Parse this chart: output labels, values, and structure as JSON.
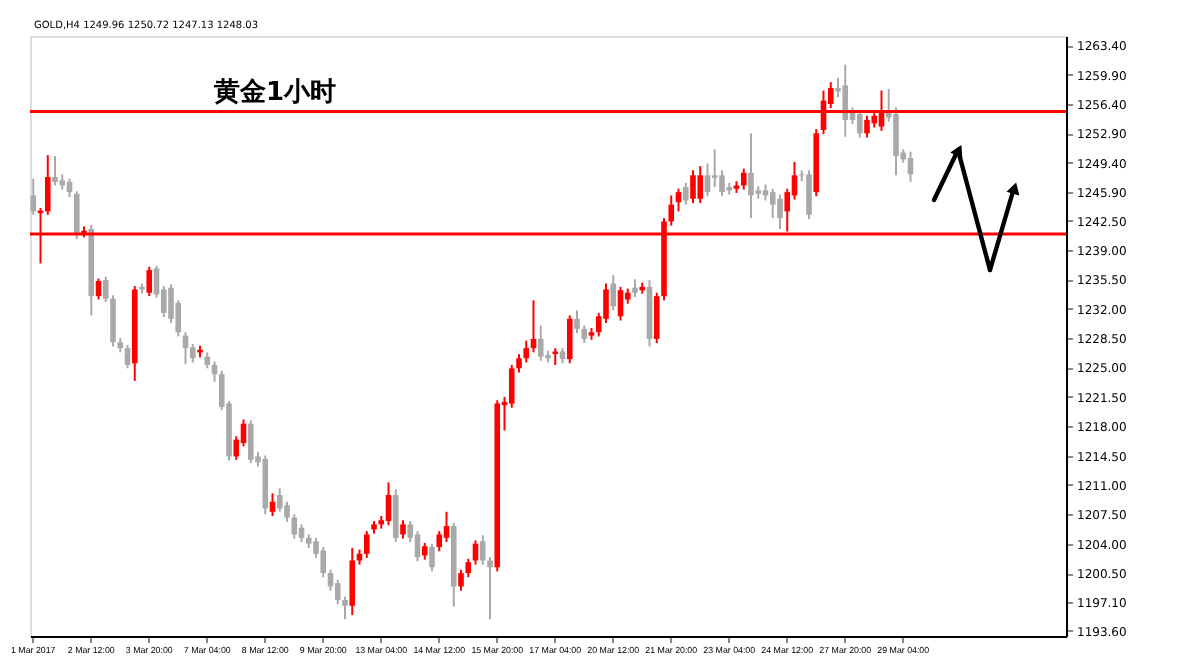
{
  "chart_data": {
    "type": "candlestick",
    "title": "黄金1小时",
    "annotations": [
      "GOLD,H4 1249.96 1250.72 1247.13 1248.03"
    ],
    "categories": [
      "1 Mar 2017",
      null,
      null,
      null,
      null,
      null,
      null,
      null,
      "2 Mar 12:00",
      null,
      null,
      null,
      null,
      null,
      null,
      null,
      "3 Mar 20:00",
      null,
      null,
      null,
      null,
      null,
      null,
      null,
      "7 Mar 04:00",
      null,
      null,
      null,
      null,
      null,
      null,
      null,
      "8 Mar 12:00",
      null,
      null,
      null,
      null,
      null,
      null,
      null,
      "9 Mar 20:00",
      null,
      null,
      null,
      null,
      null,
      null,
      null,
      "13 Mar 04:00",
      null,
      null,
      null,
      null,
      null,
      null,
      null,
      "14 Mar 12:00",
      null,
      null,
      null,
      null,
      null,
      null,
      null,
      "15 Mar 20:00",
      null,
      null,
      null,
      null,
      null,
      null,
      null,
      "17 Mar 04:00",
      null,
      null,
      null,
      null,
      null,
      null,
      null,
      "20 Mar 12:00",
      null,
      null,
      null,
      null,
      null,
      null,
      null,
      "21 Mar 20:00",
      null,
      null,
      null,
      null,
      null,
      null,
      null,
      "23 Mar 04:00",
      null,
      null,
      null,
      null,
      null,
      null,
      null,
      "24 Mar 12:00",
      null,
      null,
      null,
      null,
      null,
      null,
      null,
      "27 Mar 20:00",
      null,
      null,
      null,
      null,
      null,
      null,
      null,
      "29 Mar 04:00",
      null,
      null,
      null,
      null,
      null,
      null,
      null,
      null,
      null,
      null,
      null,
      null,
      null,
      null,
      null,
      null,
      null,
      null,
      null,
      null,
      null,
      null
    ],
    "ohlc": [
      [
        1245.5,
        1247.5,
        1243.2,
        1243.6
      ],
      [
        1243.4,
        1244.0,
        1237.4,
        1243.7
      ],
      [
        1243.6,
        1250.3,
        1243.2,
        1247.7
      ],
      [
        1247.7,
        1250.2,
        1246.7,
        1247.1
      ],
      [
        1247.3,
        1248.0,
        1246.2,
        1246.7
      ],
      [
        1247.1,
        1247.5,
        1245.3,
        1245.9
      ],
      [
        1245.7,
        1246.0,
        1240.3,
        1241.0
      ],
      [
        1240.9,
        1241.8,
        1240.5,
        1241.3
      ],
      [
        1241.5,
        1242.0,
        1231.2,
        1233.5
      ],
      [
        1233.5,
        1235.6,
        1233.1,
        1235.3
      ],
      [
        1235.4,
        1235.8,
        1232.8,
        1233.2
      ],
      [
        1233.2,
        1233.6,
        1227.5,
        1228.0
      ],
      [
        1228.0,
        1228.5,
        1226.8,
        1227.3
      ],
      [
        1227.3,
        1227.7,
        1224.9,
        1225.3
      ],
      [
        1225.5,
        1234.7,
        1223.4,
        1234.3
      ],
      [
        1234.6,
        1235.0,
        1233.8,
        1234.3
      ],
      [
        1233.9,
        1237.0,
        1233.5,
        1236.6
      ],
      [
        1236.8,
        1237.1,
        1233.3,
        1233.7
      ],
      [
        1234.3,
        1234.7,
        1231.0,
        1231.5
      ],
      [
        1234.5,
        1234.9,
        1230.3,
        1230.8
      ],
      [
        1232.7,
        1233.0,
        1228.7,
        1229.2
      ],
      [
        1228.8,
        1229.2,
        1225.4,
        1227.3
      ],
      [
        1227.4,
        1227.8,
        1225.6,
        1226.1
      ],
      [
        1226.8,
        1227.6,
        1226.2,
        1227.1
      ],
      [
        1226.3,
        1226.8,
        1224.9,
        1225.3
      ],
      [
        1225.3,
        1225.7,
        1223.3,
        1224.2
      ],
      [
        1224.2,
        1224.6,
        1219.9,
        1220.3
      ],
      [
        1220.7,
        1221.0,
        1213.9,
        1214.4
      ],
      [
        1214.4,
        1216.8,
        1214.0,
        1216.4
      ],
      [
        1216.0,
        1218.8,
        1215.6,
        1218.3
      ],
      [
        1218.3,
        1218.7,
        1213.6,
        1214.0
      ],
      [
        1214.4,
        1214.9,
        1213.2,
        1213.7
      ],
      [
        1214.1,
        1214.5,
        1207.5,
        1208.2
      ],
      [
        1207.8,
        1210.0,
        1207.3,
        1209.0
      ],
      [
        1209.8,
        1210.6,
        1207.8,
        1208.2
      ],
      [
        1208.6,
        1209.0,
        1206.6,
        1207.1
      ],
      [
        1207.1,
        1207.5,
        1204.6,
        1205.1
      ],
      [
        1205.9,
        1206.3,
        1204.2,
        1204.7
      ],
      [
        1204.7,
        1205.1,
        1203.5,
        1204.0
      ],
      [
        1204.3,
        1204.7,
        1202.3,
        1202.8
      ],
      [
        1203.2,
        1203.6,
        1200.0,
        1200.5
      ],
      [
        1200.5,
        1200.9,
        1198.4,
        1198.9
      ],
      [
        1199.3,
        1199.7,
        1196.8,
        1197.3
      ],
      [
        1197.3,
        1197.7,
        1195.0,
        1196.6
      ],
      [
        1196.6,
        1203.5,
        1195.5,
        1202.0
      ],
      [
        1202.0,
        1203.3,
        1201.5,
        1202.8
      ],
      [
        1202.8,
        1205.5,
        1202.3,
        1205.1
      ],
      [
        1205.7,
        1206.7,
        1205.2,
        1206.3
      ],
      [
        1206.3,
        1207.3,
        1205.8,
        1206.8
      ],
      [
        1206.7,
        1211.3,
        1206.2,
        1209.8
      ],
      [
        1209.8,
        1210.5,
        1204.2,
        1204.7
      ],
      [
        1205.1,
        1206.8,
        1204.6,
        1206.3
      ],
      [
        1206.3,
        1206.7,
        1204.2,
        1204.7
      ],
      [
        1205.1,
        1205.5,
        1201.9,
        1202.4
      ],
      [
        1202.6,
        1204.1,
        1202.1,
        1203.7
      ],
      [
        1203.6,
        1204.0,
        1200.7,
        1201.2
      ],
      [
        1203.6,
        1205.5,
        1203.1,
        1205.1
      ],
      [
        1204.7,
        1207.8,
        1204.2,
        1206.1
      ],
      [
        1206.1,
        1206.5,
        1196.5,
        1198.9
      ],
      [
        1198.9,
        1200.9,
        1198.4,
        1200.5
      ],
      [
        1200.5,
        1202.2,
        1200.0,
        1201.8
      ],
      [
        1202.0,
        1204.4,
        1201.5,
        1204.0
      ],
      [
        1204.3,
        1205.0,
        1201.5,
        1202.0
      ],
      [
        1202.0,
        1202.4,
        1195.0,
        1201.2
      ],
      [
        1201.2,
        1221.1,
        1200.7,
        1220.7
      ],
      [
        1220.5,
        1221.5,
        1217.5,
        1220.9
      ],
      [
        1220.7,
        1225.3,
        1220.2,
        1224.9
      ],
      [
        1224.9,
        1226.6,
        1224.4,
        1226.1
      ],
      [
        1226.1,
        1228.2,
        1225.6,
        1227.3
      ],
      [
        1227.3,
        1233.0,
        1226.8,
        1228.4
      ],
      [
        1228.4,
        1230.0,
        1225.8,
        1226.3
      ],
      [
        1226.5,
        1227.0,
        1225.6,
        1226.1
      ],
      [
        1226.6,
        1227.3,
        1225.3,
        1226.9
      ],
      [
        1226.9,
        1227.3,
        1225.5,
        1226.0
      ],
      [
        1226.0,
        1231.2,
        1225.5,
        1230.8
      ],
      [
        1230.8,
        1231.8,
        1229.1,
        1229.6
      ],
      [
        1229.6,
        1230.0,
        1227.9,
        1228.4
      ],
      [
        1228.8,
        1229.7,
        1228.3,
        1229.2
      ],
      [
        1229.2,
        1231.5,
        1228.7,
        1231.1
      ],
      [
        1230.8,
        1235.0,
        1230.3,
        1234.3
      ],
      [
        1235.0,
        1236.0,
        1231.8,
        1232.3
      ],
      [
        1231.1,
        1234.6,
        1230.6,
        1234.2
      ],
      [
        1233.1,
        1234.4,
        1232.6,
        1233.9
      ],
      [
        1234.5,
        1235.5,
        1233.4,
        1233.9
      ],
      [
        1234.2,
        1235.1,
        1233.8,
        1234.6
      ],
      [
        1234.6,
        1235.4,
        1227.5,
        1228.4
      ],
      [
        1228.4,
        1233.9,
        1227.9,
        1233.5
      ],
      [
        1233.5,
        1242.8,
        1233.0,
        1242.4
      ],
      [
        1242.4,
        1245.5,
        1241.9,
        1244.4
      ],
      [
        1244.7,
        1246.3,
        1243.6,
        1245.9
      ],
      [
        1246.5,
        1247.0,
        1244.4,
        1244.9
      ],
      [
        1245.1,
        1248.5,
        1244.6,
        1247.9
      ],
      [
        1245.1,
        1249.0,
        1244.6,
        1247.9
      ],
      [
        1247.9,
        1249.3,
        1245.4,
        1245.9
      ],
      [
        1247.9,
        1251.0,
        1246.5,
        1247.6
      ],
      [
        1247.9,
        1248.5,
        1245.4,
        1245.9
      ],
      [
        1246.5,
        1247.0,
        1245.6,
        1246.1
      ],
      [
        1246.3,
        1247.2,
        1245.8,
        1246.7
      ],
      [
        1246.7,
        1248.7,
        1246.2,
        1248.2
      ],
      [
        1248.2,
        1252.9,
        1242.8,
        1245.5
      ],
      [
        1246.1,
        1246.6,
        1245.1,
        1245.7
      ],
      [
        1246.1,
        1246.8,
        1244.9,
        1245.5
      ],
      [
        1245.9,
        1246.3,
        1242.8,
        1244.4
      ],
      [
        1245.1,
        1245.6,
        1241.5,
        1242.8
      ],
      [
        1243.6,
        1246.3,
        1241.2,
        1245.9
      ],
      [
        1245.5,
        1249.5,
        1245.0,
        1247.9
      ],
      [
        1248.0,
        1248.5,
        1247.2,
        1247.9
      ],
      [
        1248.0,
        1248.5,
        1242.7,
        1243.2
      ],
      [
        1245.9,
        1253.4,
        1245.4,
        1252.9
      ],
      [
        1253.3,
        1258.0,
        1252.8,
        1256.8
      ],
      [
        1256.4,
        1259.0,
        1255.9,
        1258.3
      ],
      [
        1258.3,
        1259.5,
        1257.2,
        1257.9
      ],
      [
        1258.6,
        1261.1,
        1252.5,
        1254.5
      ],
      [
        1255.5,
        1256.0,
        1254.0,
        1254.5
      ],
      [
        1255.2,
        1255.7,
        1252.4,
        1252.9
      ],
      [
        1252.9,
        1255.0,
        1252.4,
        1254.5
      ],
      [
        1254.1,
        1255.5,
        1253.6,
        1255.0
      ],
      [
        1253.7,
        1258.0,
        1253.2,
        1255.6
      ],
      [
        1255.6,
        1258.2,
        1254.3,
        1254.8
      ],
      [
        1255.2,
        1256.0,
        1247.9,
        1250.2
      ],
      [
        1250.6,
        1251.0,
        1249.4,
        1249.8
      ],
      [
        1249.96,
        1250.72,
        1247.13,
        1248.03
      ],
      null,
      null,
      null,
      null,
      null,
      null,
      null,
      null,
      null,
      null,
      null,
      null,
      null,
      null,
      null,
      null,
      null,
      null,
      null,
      null,
      null
    ],
    "colors": [
      "#a9a9a9",
      "#ff0000",
      "#ff0000",
      "#a9a9a9",
      "#a9a9a9",
      "#a9a9a9",
      "#a9a9a9",
      "#ff0000",
      "#a9a9a9",
      "#ff0000",
      "#a9a9a9",
      "#a9a9a9",
      "#a9a9a9",
      "#a9a9a9",
      "#ff0000",
      "#a9a9a9",
      "#ff0000",
      "#a9a9a9",
      "#a9a9a9",
      "#a9a9a9",
      "#a9a9a9",
      "#a9a9a9",
      "#a9a9a9",
      "#ff0000",
      "#a9a9a9",
      "#a9a9a9",
      "#a9a9a9",
      "#a9a9a9",
      "#ff0000",
      "#ff0000",
      "#a9a9a9",
      "#a9a9a9",
      "#a9a9a9",
      "#ff0000",
      "#a9a9a9",
      "#a9a9a9",
      "#a9a9a9",
      "#a9a9a9",
      "#a9a9a9",
      "#a9a9a9",
      "#a9a9a9",
      "#a9a9a9",
      "#a9a9a9",
      "#a9a9a9",
      "#ff0000",
      "#ff0000",
      "#ff0000",
      "#ff0000",
      "#ff0000",
      "#ff0000",
      "#a9a9a9",
      "#ff0000",
      "#a9a9a9",
      "#a9a9a9",
      "#ff0000",
      "#a9a9a9",
      "#ff0000",
      "#ff0000",
      "#a9a9a9",
      "#ff0000",
      "#ff0000",
      "#ff0000",
      "#a9a9a9",
      "#a9a9a9",
      "#ff0000",
      "#ff0000",
      "#ff0000",
      "#ff0000",
      "#ff0000",
      "#ff0000",
      "#a9a9a9",
      "#a9a9a9",
      "#ff0000",
      "#a9a9a9",
      "#ff0000",
      "#a9a9a9",
      "#a9a9a9",
      "#ff0000",
      "#ff0000",
      "#ff0000",
      "#a9a9a9",
      "#ff0000",
      "#ff0000",
      "#a9a9a9",
      "#ff0000",
      "#a9a9a9",
      "#ff0000",
      "#ff0000",
      "#ff0000",
      "#ff0000",
      "#a9a9a9",
      "#ff0000",
      "#ff0000",
      "#a9a9a9",
      "#a9a9a9",
      "#a9a9a9",
      "#a9a9a9",
      "#ff0000",
      "#ff0000",
      "#a9a9a9",
      "#a9a9a9",
      "#a9a9a9",
      "#a9a9a9",
      "#a9a9a9",
      "#ff0000",
      "#ff0000",
      "#a9a9a9",
      "#a9a9a9",
      "#ff0000",
      "#ff0000",
      "#ff0000",
      "#a9a9a9",
      "#a9a9a9",
      "#a9a9a9",
      "#a9a9a9",
      "#ff0000",
      "#ff0000",
      "#ff0000",
      "#a9a9a9",
      "#a9a9a9",
      "#a9a9a9",
      "#a9a9a9",
      null,
      null,
      null,
      null,
      null,
      null,
      null,
      null,
      null,
      null,
      null,
      null,
      null,
      null,
      null,
      null,
      null,
      null,
      null,
      null,
      null
    ],
    "ylim": [
      1193.0,
      1264.5
    ],
    "yticks": [
      {
        "value": 1263.4,
        "label": "1263.40"
      },
      {
        "value": 1259.9,
        "label": "1259.90"
      },
      {
        "value": 1256.4,
        "label": "1256.40"
      },
      {
        "value": 1252.9,
        "label": "1252.90"
      },
      {
        "value": 1249.4,
        "label": "1249.40"
      },
      {
        "value": 1245.9,
        "label": "1245.90"
      },
      {
        "value": 1242.5,
        "label": "1242.50"
      },
      {
        "value": 1239.0,
        "label": "1239.00"
      },
      {
        "value": 1235.5,
        "label": "1235.50"
      },
      {
        "value": 1232.0,
        "label": "1232.00"
      },
      {
        "value": 1228.5,
        "label": "1228.50"
      },
      {
        "value": 1225.0,
        "label": "1225.00"
      },
      {
        "value": 1221.5,
        "label": "1221.50"
      },
      {
        "value": 1218.0,
        "label": "1218.00"
      },
      {
        "value": 1214.5,
        "label": "1214.50"
      },
      {
        "value": 1211.0,
        "label": "1211.00"
      },
      {
        "value": 1207.5,
        "label": "1207.50"
      },
      {
        "value": 1204.0,
        "label": "1204.00"
      },
      {
        "value": 1200.5,
        "label": "1200.50"
      },
      {
        "value": 1197.1,
        "label": "1197.10"
      },
      {
        "value": 1193.6,
        "label": "1193.60"
      }
    ],
    "ref_lines": [
      {
        "axis": "y",
        "value": 1255.5,
        "color": "#ff0000",
        "line_style": "solid"
      },
      {
        "axis": "y",
        "value": 1240.9,
        "color": "#ff0000",
        "line_style": "solid"
      }
    ],
    "grid": false
  }
}
